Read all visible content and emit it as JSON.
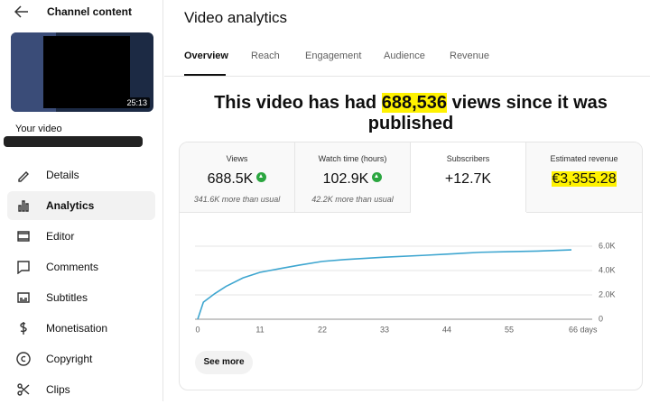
{
  "sidebar": {
    "title": "Channel content",
    "thumbnail_duration": "25:13",
    "label": "Your video",
    "menu": [
      "Details",
      "Analytics",
      "Editor",
      "Comments",
      "Subtitles",
      "Monetisation",
      "Copyright",
      "Clips"
    ]
  },
  "header": {
    "title": "Video analytics"
  },
  "tabs": [
    "Overview",
    "Reach",
    "Engagement",
    "Audience",
    "Revenue"
  ],
  "headline": {
    "before": "This video has had",
    "highlight": "688,536",
    "after": "views since it was published"
  },
  "metrics": [
    {
      "label": "Views",
      "value": "688.5K",
      "note": "341.6K more than usual"
    },
    {
      "label": "Watch time (hours)",
      "value": "102.9K",
      "note": "42.2K more than usual"
    },
    {
      "label": "Subscribers",
      "value": "+12.7K"
    },
    {
      "label": "Estimated revenue",
      "value": "€3,355.28"
    }
  ],
  "chart_data": {
    "type": "line",
    "color": "#3ea6d0",
    "grid": true,
    "x": [
      0,
      1,
      3,
      5,
      8,
      11,
      15,
      18,
      22,
      26,
      33,
      40,
      44,
      50,
      55,
      60,
      66
    ],
    "values": [
      0,
      1400,
      2100,
      2700,
      3400,
      3850,
      4200,
      4450,
      4750,
      4900,
      5100,
      5250,
      5350,
      5500,
      5550,
      5600,
      5700
    ],
    "xlim": [
      0,
      66
    ],
    "xticks": [
      0,
      11,
      22,
      33,
      44,
      55,
      {
        "value": 66,
        "label": "66 days"
      }
    ],
    "ylim": [
      0,
      7000
    ],
    "yticks": [
      0,
      {
        "value": 2000,
        "label": "2.0K"
      },
      {
        "value": 4000,
        "label": "4.0K"
      },
      {
        "value": 6000,
        "label": "6.0K"
      }
    ]
  },
  "button": "See more"
}
